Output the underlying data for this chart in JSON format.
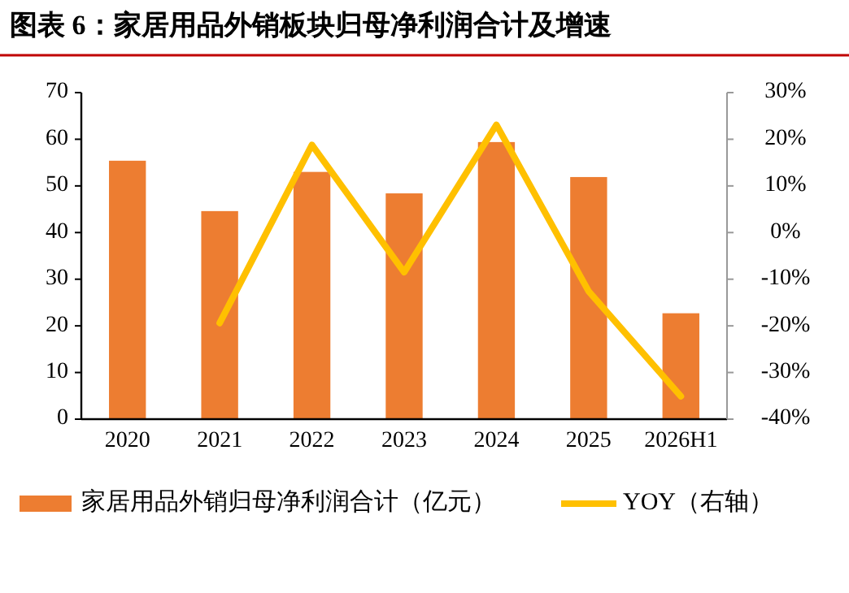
{
  "chart_data": {
    "type": "bar",
    "title": "图表 6：家居用品外销板块归母净利润合计及增速",
    "categories": [
      "2020",
      "2021",
      "2022",
      "2023",
      "2024",
      "2025",
      "2026H1"
    ],
    "series": [
      {
        "name": "家居用品外销归母净利润合计（亿元）",
        "color": "#ed7d31",
        "values": [
          55.4,
          44.6,
          53.0,
          48.4,
          59.4,
          51.9,
          22.7
        ]
      },
      {
        "name": "YOY（右轴）",
        "type": "line",
        "axis": "y2",
        "color": "#ffc000",
        "values": [
          null,
          -19.4,
          18.8,
          -8.5,
          23.1,
          -12.6,
          -35.1
        ]
      }
    ],
    "ylim": [
      0,
      70
    ],
    "yticks": [
      0,
      10,
      20,
      30,
      40,
      50,
      60,
      70
    ],
    "y2lim": [
      -40,
      30
    ],
    "y2ticks": [
      {
        "value": -40,
        "label": "-40%"
      },
      {
        "value": -30,
        "label": "-30%"
      },
      {
        "value": -20,
        "label": "-20%"
      },
      {
        "value": -10,
        "label": "-10%"
      },
      {
        "value": 0,
        "label": "0%"
      },
      {
        "value": 10,
        "label": "10%"
      },
      {
        "value": 20,
        "label": "20%"
      },
      {
        "value": 30,
        "label": "30%"
      }
    ],
    "grid": false,
    "legend": "bottom",
    "marker": "none",
    "line_style": "solid"
  }
}
